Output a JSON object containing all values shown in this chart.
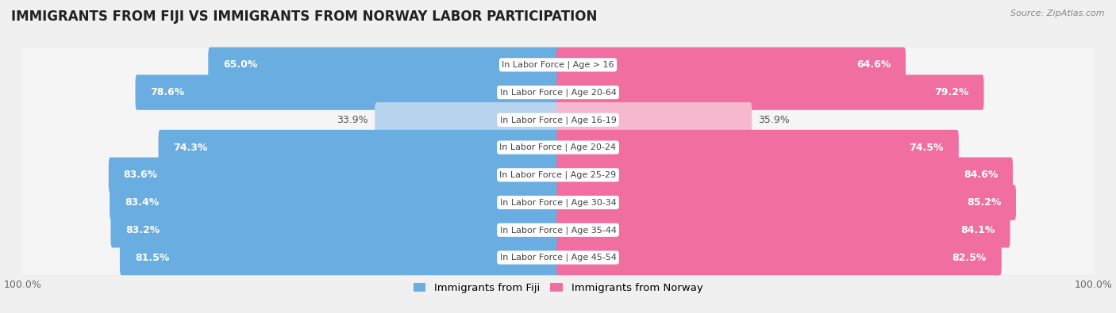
{
  "title": "IMMIGRANTS FROM FIJI VS IMMIGRANTS FROM NORWAY LABOR PARTICIPATION",
  "source": "Source: ZipAtlas.com",
  "categories": [
    "In Labor Force | Age > 16",
    "In Labor Force | Age 20-64",
    "In Labor Force | Age 16-19",
    "In Labor Force | Age 20-24",
    "In Labor Force | Age 25-29",
    "In Labor Force | Age 30-34",
    "In Labor Force | Age 35-44",
    "In Labor Force | Age 45-54"
  ],
  "fiji_values": [
    65.0,
    78.6,
    33.9,
    74.3,
    83.6,
    83.4,
    83.2,
    81.5
  ],
  "norway_values": [
    64.6,
    79.2,
    35.9,
    74.5,
    84.6,
    85.2,
    84.1,
    82.5
  ],
  "fiji_color_strong": "#6aade0",
  "fiji_color_light": "#b8d4ee",
  "norway_color_strong": "#f06ea0",
  "norway_color_light": "#f5b8d0",
  "background_color": "#f0f0f0",
  "row_bg_color": "#e8e8e8",
  "bar_bg_color": "#f5f5f5",
  "max_value": 100.0,
  "legend_fiji": "Immigrants from Fiji",
  "legend_norway": "Immigrants from Norway",
  "title_fontsize": 12,
  "label_fontsize": 9,
  "category_fontsize": 8,
  "tick_fontsize": 9
}
